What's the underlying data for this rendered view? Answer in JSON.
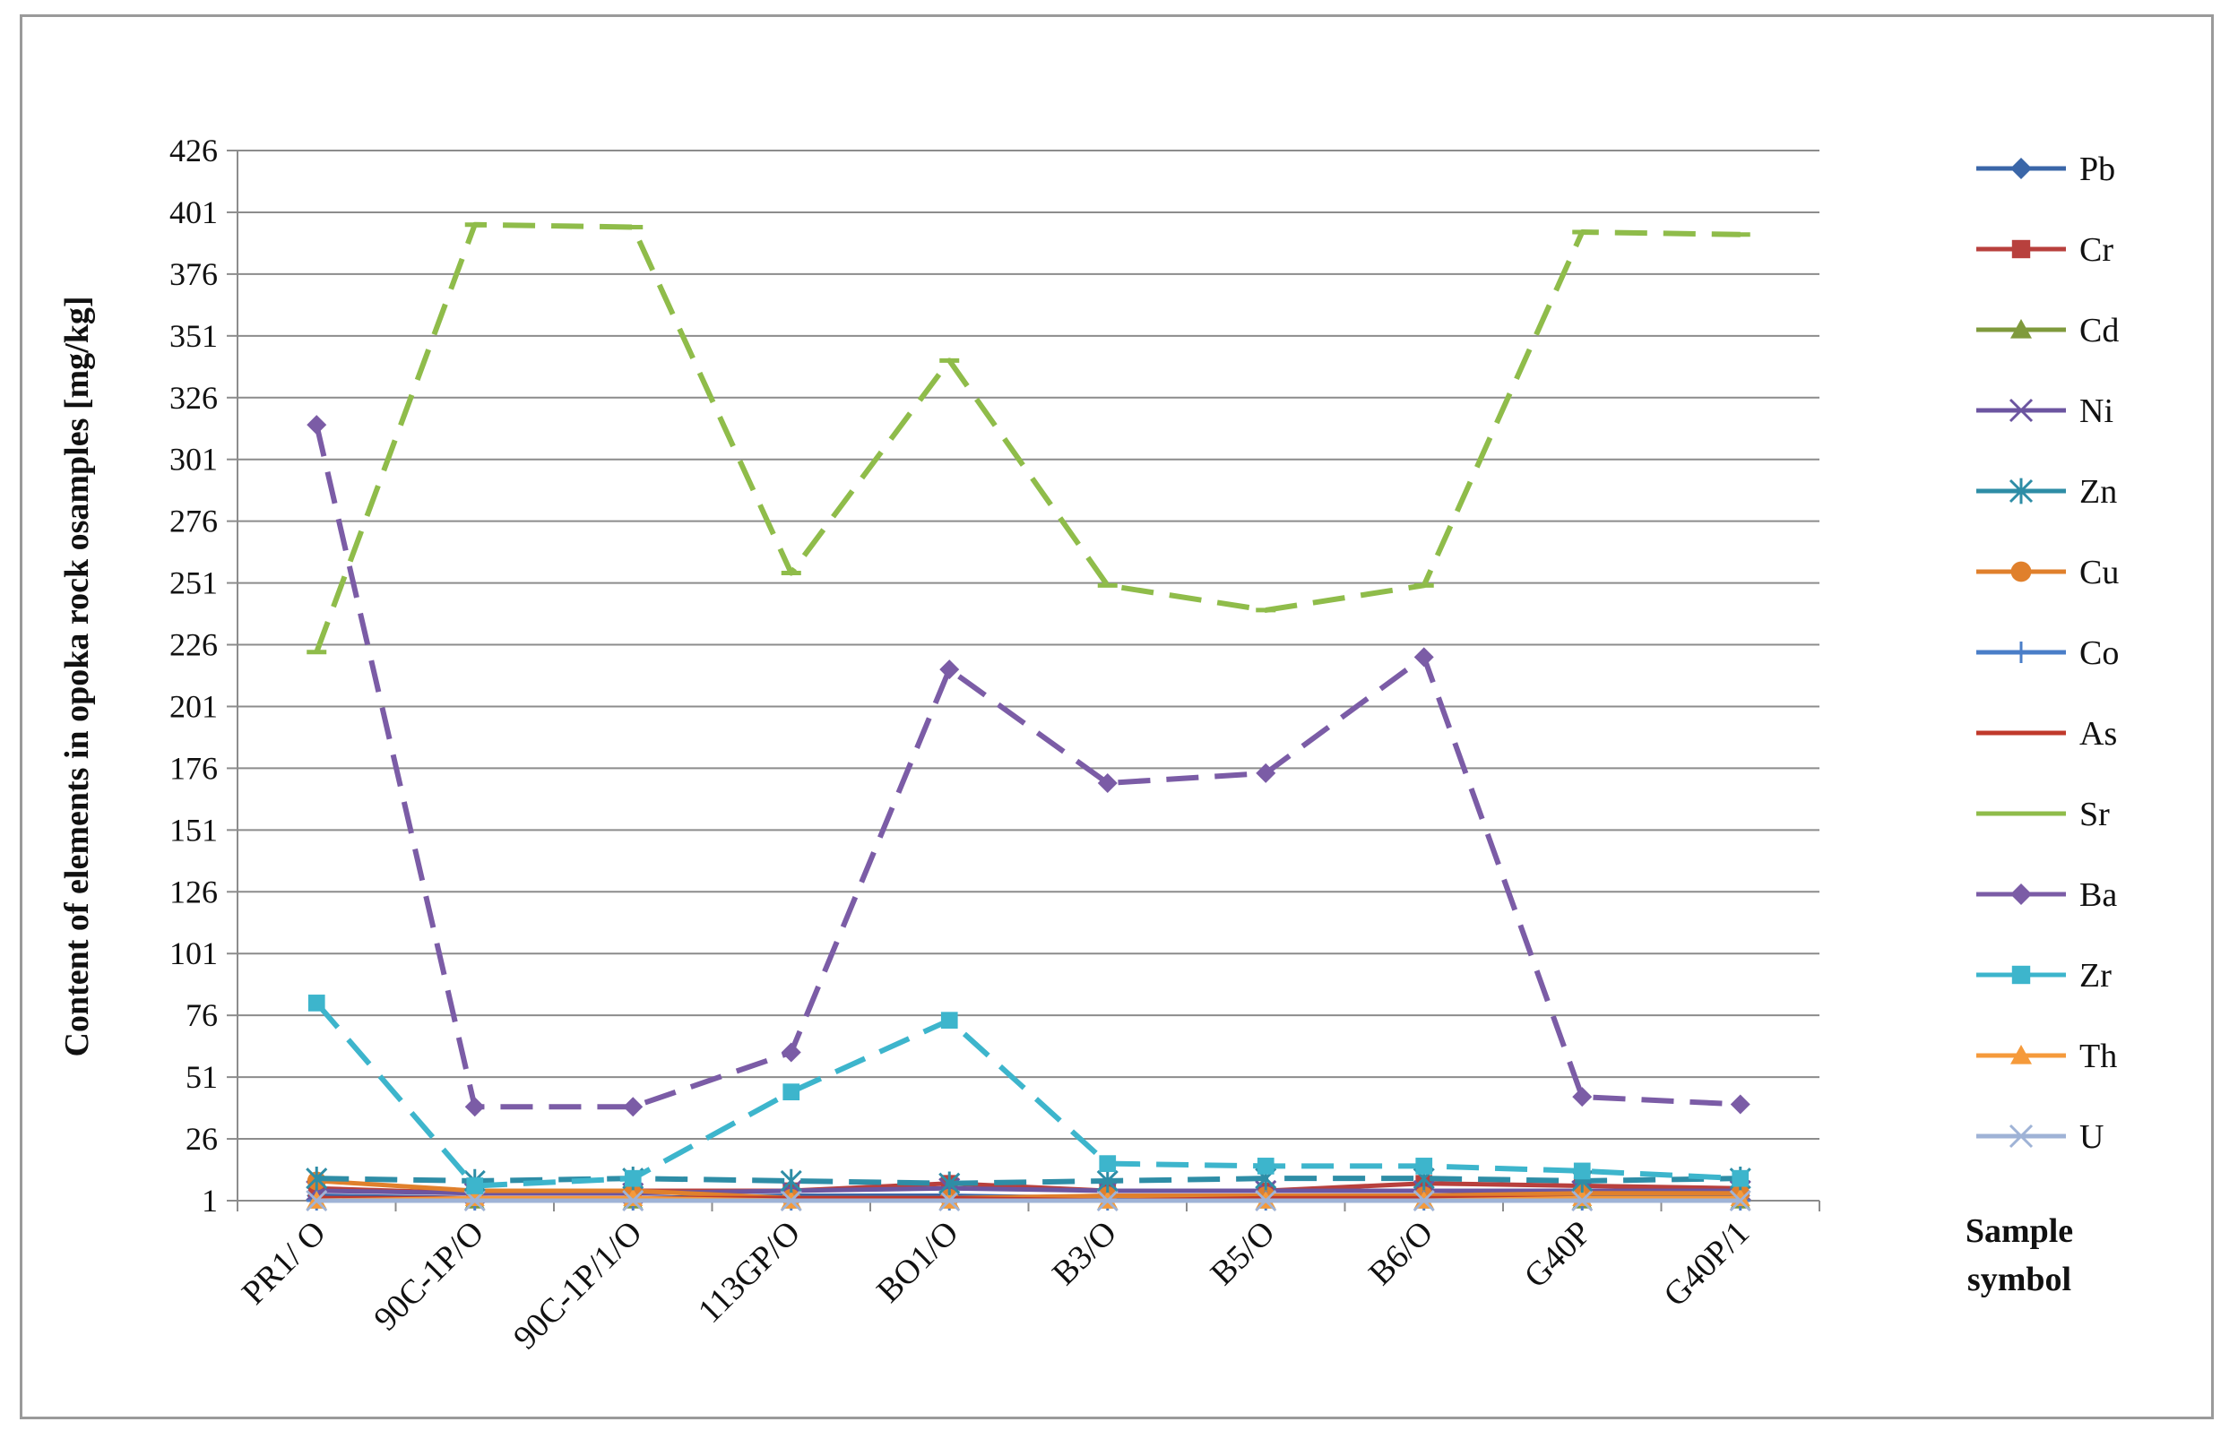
{
  "chart_data": {
    "type": "line",
    "title": "",
    "ylabel": "Content of elements in opoka rock osamples [mg/kg]",
    "xlabel": "Sample symbol",
    "ylim": [
      1,
      426
    ],
    "yticks": [
      1,
      26,
      51,
      76,
      101,
      126,
      151,
      176,
      201,
      226,
      251,
      276,
      301,
      326,
      351,
      376,
      401,
      426
    ],
    "grid": true,
    "legend_position": "right",
    "categories": [
      "PR1/ O",
      "90C-1P/O",
      "90C-1P/1/O",
      "113GP/O",
      "BO1/O",
      "B3/O",
      "B5/O",
      "B6/O",
      "G40P",
      "G40P/1"
    ],
    "series": [
      {
        "name": "Pb",
        "color": "#3a66a8",
        "marker": "diamond",
        "dashed": false,
        "values": [
          3,
          2,
          2,
          3,
          3,
          2,
          2,
          2,
          3,
          3
        ]
      },
      {
        "name": "Cr",
        "color": "#b8403d",
        "marker": "square",
        "dashed": false,
        "values": [
          6,
          4,
          5,
          5,
          8,
          5,
          5,
          8,
          7,
          6
        ]
      },
      {
        "name": "Cd",
        "color": "#7f9a3c",
        "marker": "triangle",
        "dashed": false,
        "values": [
          1,
          1,
          1,
          1,
          1,
          1,
          1,
          1,
          1,
          1
        ]
      },
      {
        "name": "Ni",
        "color": "#6c55a0",
        "marker": "x",
        "dashed": false,
        "values": [
          5,
          4,
          4,
          5,
          6,
          5,
          5,
          5,
          5,
          5
        ]
      },
      {
        "name": "Zn",
        "color": "#2e8da6",
        "marker": "star",
        "dashed": true,
        "values": [
          10,
          9,
          10,
          9,
          8,
          9,
          10,
          10,
          9,
          10
        ]
      },
      {
        "name": "Cu",
        "color": "#e0802c",
        "marker": "circle",
        "dashed": false,
        "values": [
          9,
          5,
          5,
          2,
          2,
          3,
          3,
          3,
          4,
          4
        ]
      },
      {
        "name": "Co",
        "color": "#4a7ec8",
        "marker": "plus",
        "dashed": false,
        "values": [
          1,
          1,
          1,
          1,
          1,
          1,
          1,
          1,
          1,
          1
        ]
      },
      {
        "name": "As",
        "color": "#c0392b",
        "marker": "none",
        "dashed": false,
        "values": [
          2,
          2,
          2,
          2,
          2,
          1,
          2,
          2,
          2,
          2
        ]
      },
      {
        "name": "Sr",
        "color": "#8fbc4a",
        "marker": "dash",
        "dashed": true,
        "values": [
          223,
          396,
          395,
          255,
          341,
          250,
          240,
          250,
          393,
          392
        ]
      },
      {
        "name": "Ba",
        "color": "#7b5ca6",
        "marker": "diamond",
        "dashed": true,
        "values": [
          315,
          39,
          39,
          61,
          216,
          170,
          174,
          221,
          43,
          40
        ]
      },
      {
        "name": "Zr",
        "color": "#3db5cc",
        "marker": "square",
        "dashed": true,
        "values": [
          81,
          7,
          10,
          45,
          74,
          16,
          15,
          15,
          13,
          10
        ]
      },
      {
        "name": "Th",
        "color": "#f59a3b",
        "marker": "triangle",
        "dashed": false,
        "values": [
          1,
          2,
          2,
          1,
          1,
          1,
          1,
          1,
          2,
          2
        ]
      },
      {
        "name": "U",
        "color": "#9fb3d6",
        "marker": "x",
        "dashed": false,
        "values": [
          1,
          1,
          1,
          1,
          1,
          1,
          1,
          1,
          1,
          1
        ]
      }
    ]
  }
}
